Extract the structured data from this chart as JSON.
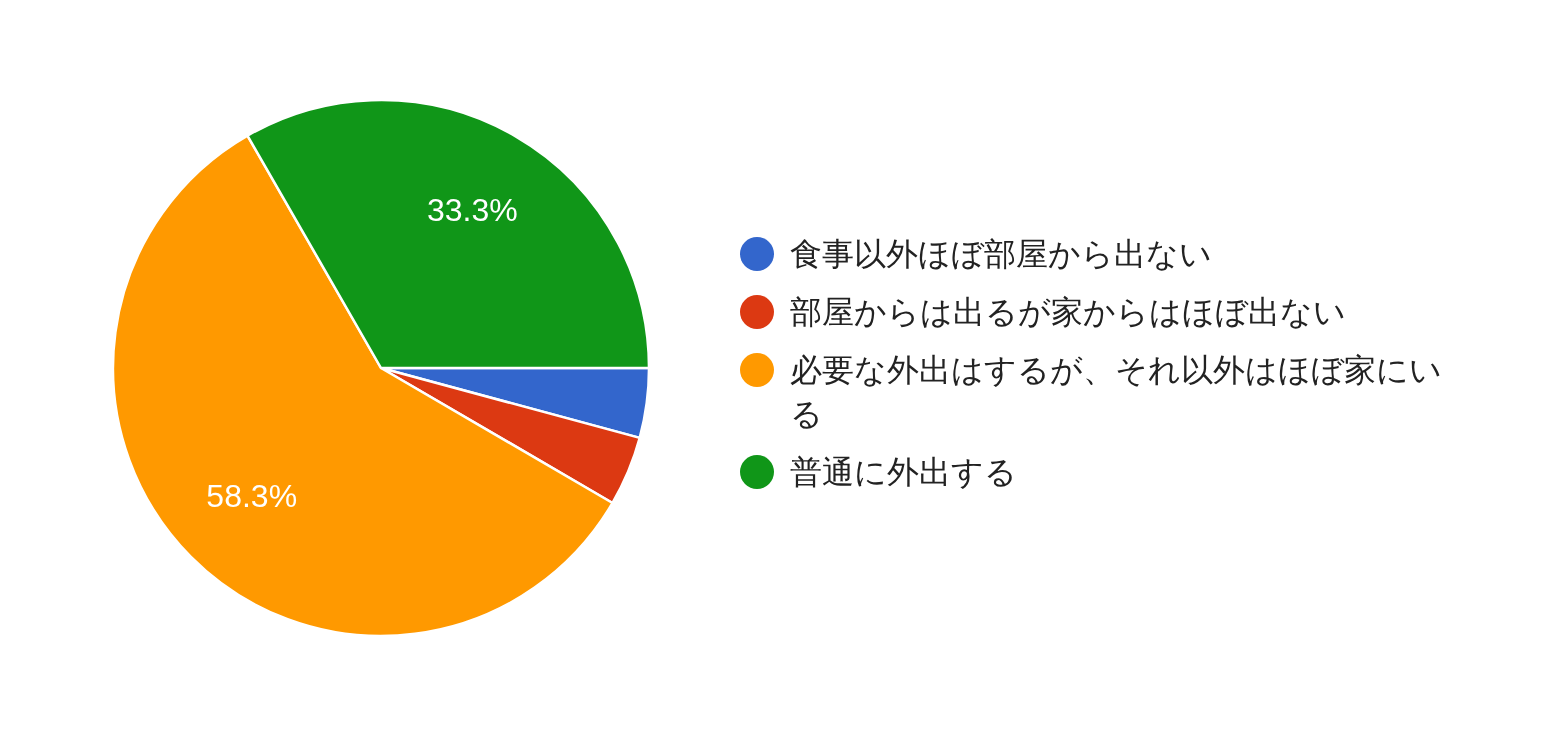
{
  "chart_data": {
    "type": "pie",
    "categories": [
      "食事以外ほぼ部屋から出ない",
      "部屋からは出るが家からはほぼ出ない",
      "必要な外出はするが、それ以外はほぼ家にいる",
      "普通に外出する"
    ],
    "values": [
      4.2,
      4.2,
      58.3,
      33.3
    ],
    "colors": [
      "#3366cc",
      "#dc3912",
      "#ff9900",
      "#109618"
    ],
    "value_labels": [
      null,
      null,
      "58.3%",
      "33.3%"
    ],
    "legend": "right"
  }
}
